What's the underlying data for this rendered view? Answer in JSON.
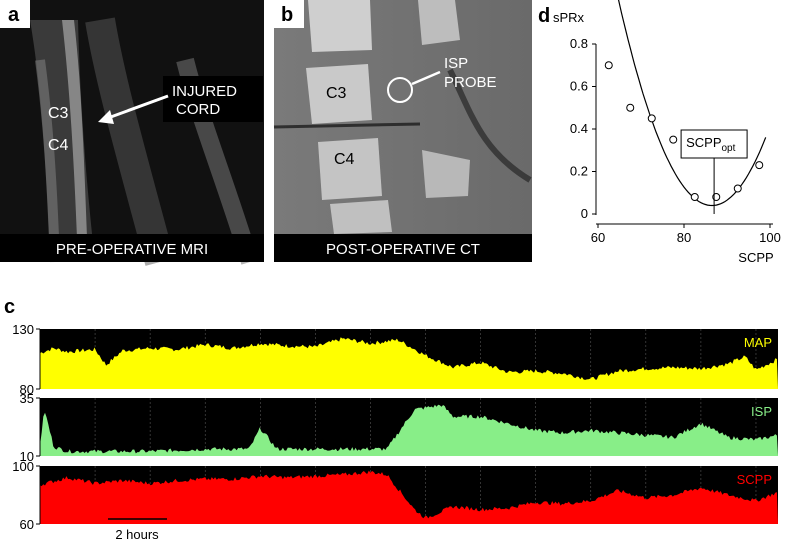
{
  "panels": {
    "a": {
      "letter": "a",
      "caption": "PRE-OPERATIVE MRI",
      "labels": [
        "C3",
        "C4"
      ],
      "callout": [
        "INJURED",
        "CORD"
      ]
    },
    "b": {
      "letter": "b",
      "caption": "POST-OPERATIVE CT",
      "labels": [
        "C3",
        "C4"
      ],
      "callout": [
        "ISP",
        "PROBE"
      ]
    },
    "c": {
      "letter": "c",
      "scalebar_label": "2 hours"
    },
    "d": {
      "letter": "d"
    }
  },
  "chart_data": [
    {
      "type": "scatter",
      "panel": "d",
      "xlabel": "SCPP",
      "ylabel": "sPRx",
      "xlim": [
        60,
        100
      ],
      "ylim": [
        0,
        0.8
      ],
      "xticks": [
        "60",
        "80",
        "100"
      ],
      "yticks": [
        "0",
        "0.2",
        "0.4",
        "0.6",
        "0.8"
      ],
      "points": {
        "x": [
          62.5,
          67.5,
          72.5,
          77.5,
          82.5,
          87.5,
          92.5,
          97.5
        ],
        "y": [
          0.7,
          0.5,
          0.45,
          0.35,
          0.08,
          0.08,
          0.12,
          0.23
        ]
      },
      "fit": {
        "model": "quadratic",
        "a": 0.00205,
        "x0": 86.5,
        "ymin": 0.04,
        "xrange": [
          63,
          99
        ]
      },
      "annotation": {
        "text": "SCPP",
        "subscript": "opt",
        "x": 87
      }
    },
    {
      "type": "area",
      "panel": "c",
      "duration_hours": 13.4,
      "scalebar_hours": 2,
      "series": [
        {
          "name": "MAP",
          "color": "#ffff00",
          "ylim": [
            80,
            130
          ],
          "yticks": [
            "130",
            "80"
          ],
          "t": [
            0,
            0.25,
            0.5,
            1,
            1.2,
            1.5,
            2,
            2.5,
            3,
            3.5,
            4,
            4.5,
            5,
            5.5,
            6,
            6.5,
            7,
            7.5,
            8,
            8.5,
            9,
            9.5,
            10,
            10.5,
            11,
            11.5,
            12,
            12.5,
            12.8,
            13,
            13.4
          ],
          "values": [
            110,
            114,
            111,
            113,
            100,
            112,
            114,
            113,
            117,
            114,
            118,
            116,
            115,
            122,
            118,
            121,
            108,
            98,
            102,
            94,
            95,
            93,
            88,
            95,
            97,
            98,
            97,
            101,
            107,
            96,
            105
          ]
        },
        {
          "name": "ISP",
          "color": "#88ee88",
          "ylim": [
            10,
            35
          ],
          "yticks": [
            "35",
            "10"
          ],
          "t": [
            0,
            0.08,
            0.25,
            0.5,
            1,
            2,
            3,
            3.8,
            4,
            4.3,
            5,
            5.5,
            6,
            6.3,
            6.8,
            7.3,
            7.5,
            8,
            8.5,
            9,
            9.5,
            10,
            10.5,
            11,
            11.5,
            12,
            12.5,
            13,
            13.4
          ],
          "values": [
            15,
            30,
            14,
            12,
            12,
            12,
            13,
            13,
            22,
            13,
            13,
            13,
            13,
            13,
            30,
            32,
            27,
            27,
            24,
            21,
            20,
            21,
            20,
            19,
            18,
            24,
            18,
            17,
            19
          ]
        },
        {
          "name": "SCPP",
          "color": "#ff0000",
          "ylim": [
            60,
            100
          ],
          "yticks": [
            "100",
            "60"
          ],
          "t": [
            0,
            0.5,
            1,
            1.5,
            2,
            2.5,
            3,
            3.5,
            4,
            4.5,
            5,
            5.5,
            6,
            6.3,
            6.8,
            7,
            7.5,
            8,
            8.5,
            9,
            9.5,
            10,
            10.5,
            11,
            11.5,
            12,
            12.5,
            13,
            13.4
          ],
          "values": [
            87,
            92,
            88,
            90,
            88,
            90,
            91,
            91,
            93,
            92,
            93,
            94,
            96,
            94,
            70,
            64,
            72,
            70,
            71,
            75,
            74,
            76,
            83,
            78,
            80,
            85,
            80,
            76,
            82
          ]
        }
      ]
    }
  ]
}
